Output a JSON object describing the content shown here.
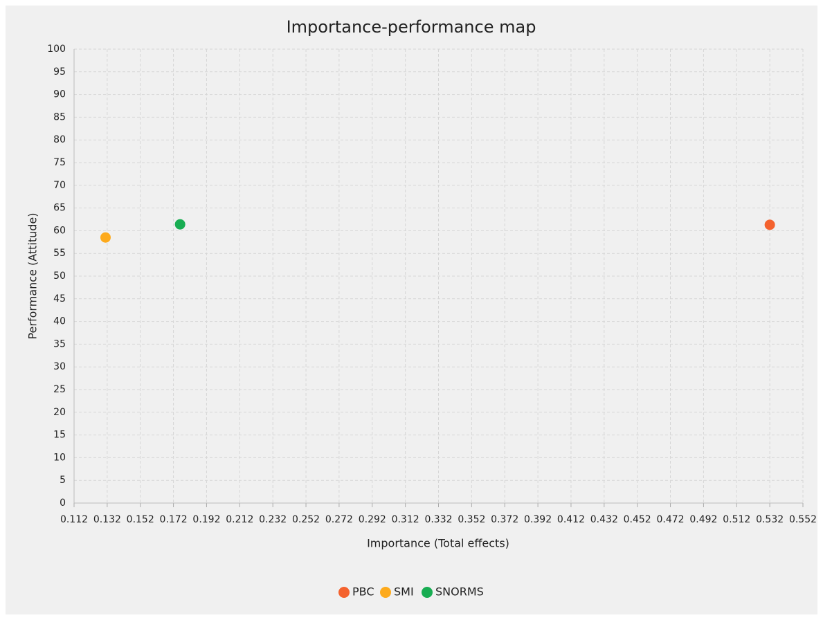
{
  "chart_data": {
    "type": "scatter",
    "title": "Importance-performance map",
    "x_label": "Importance (Total effects)",
    "y_label": "Performance (Attitude)",
    "series": [
      {
        "name": "PBC",
        "color": "#f4622e",
        "x": [
          0.532
        ],
        "values": [
          61.3
        ]
      },
      {
        "name": "SMI",
        "color": "#fdaa1c",
        "x": [
          0.131
        ],
        "values": [
          58.5
        ]
      },
      {
        "name": "SNORMS",
        "color": "#18ad52",
        "x": [
          0.176
        ],
        "values": [
          61.4
        ]
      }
    ],
    "xlim": [
      0.112,
      0.552
    ],
    "xticks": [
      0.112,
      0.132,
      0.152,
      0.172,
      0.192,
      0.212,
      0.232,
      0.252,
      0.272,
      0.292,
      0.312,
      0.332,
      0.352,
      0.372,
      0.392,
      0.412,
      0.432,
      0.452,
      0.472,
      0.492,
      0.512,
      0.532,
      0.552
    ],
    "ylim": [
      0,
      100
    ],
    "yticks": [
      0,
      5,
      10,
      15,
      20,
      25,
      30,
      35,
      40,
      45,
      50,
      55,
      60,
      65,
      70,
      75,
      80,
      85,
      90,
      95,
      100
    ],
    "grid": true,
    "legend": "bottom"
  }
}
